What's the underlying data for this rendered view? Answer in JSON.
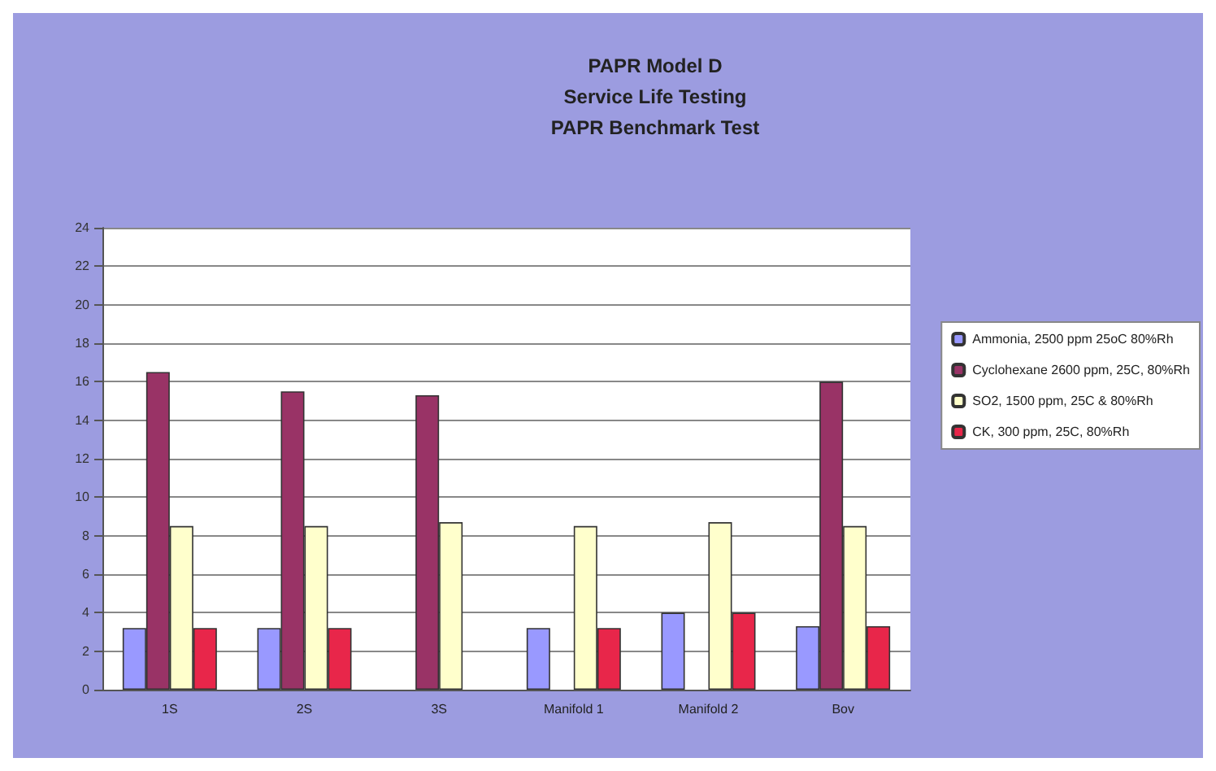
{
  "chart_data": {
    "type": "bar",
    "title": "PAPR Model D\nService Life Testing\nPAPR Benchmark Test",
    "categories": [
      "1S",
      "2S",
      "3S",
      "Manifold 1",
      "Manifold 2",
      "Bov"
    ],
    "series": [
      {
        "name": "Ammonia, 2500 ppm 25oC 80%Rh",
        "color": "#9999ff",
        "values": [
          3.2,
          3.2,
          null,
          3.2,
          4.0,
          3.3
        ]
      },
      {
        "name": "Cyclohexane 2600 ppm, 25C, 80%Rh",
        "color": "#993366",
        "values": [
          16.5,
          15.5,
          15.3,
          null,
          null,
          16.0
        ]
      },
      {
        "name": "SO2, 1500 ppm, 25C & 80%Rh",
        "color": "#ffffcc",
        "values": [
          8.5,
          8.5,
          8.7,
          8.5,
          8.7,
          8.5
        ]
      },
      {
        "name": "CK, 300 ppm, 25C, 80%Rh",
        "color": "#e8264a",
        "values": [
          3.2,
          3.2,
          null,
          3.2,
          4.0,
          3.3
        ]
      }
    ],
    "ylim": [
      0,
      24
    ],
    "yticks": [
      0,
      2,
      4,
      6,
      8,
      10,
      12,
      14,
      16,
      18,
      20,
      22,
      24
    ],
    "grid": "y",
    "legend": "right"
  }
}
